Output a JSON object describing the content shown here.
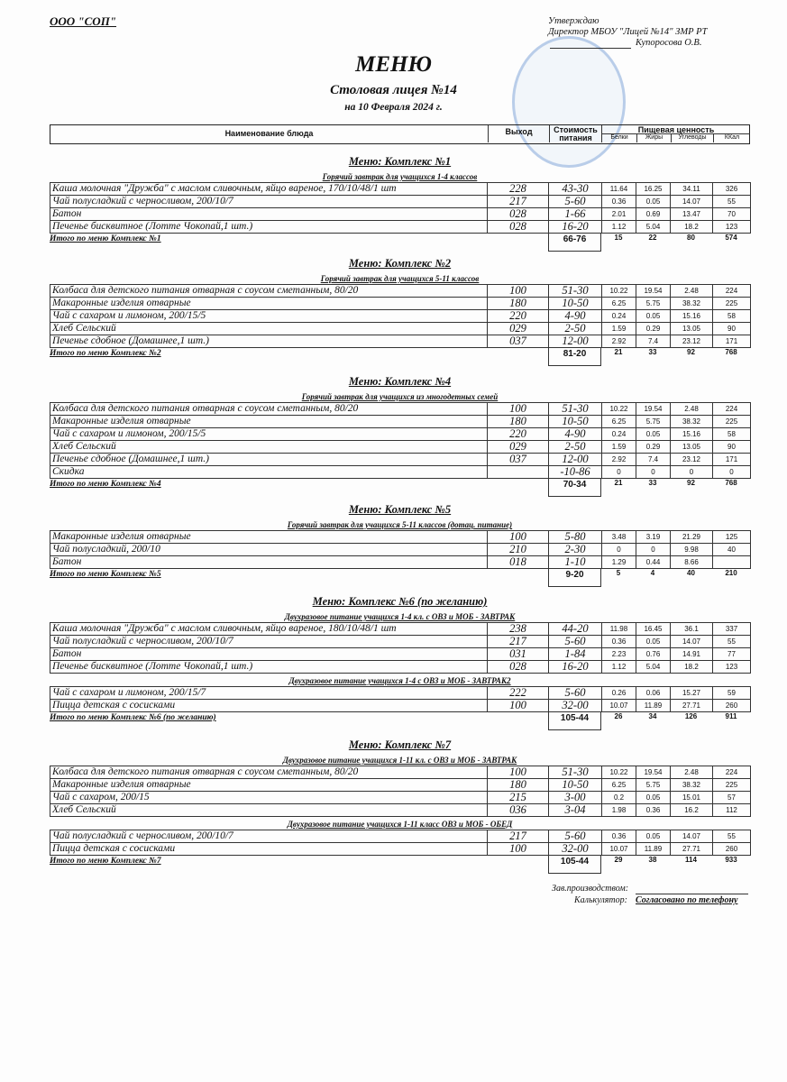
{
  "org": "ООО \"СОП\"",
  "approval": {
    "line1": "Утверждаю",
    "line2": "Директор МБОУ \"Лицей №14\" ЗМР РТ",
    "line3": "Купоросова О.В."
  },
  "title": "МЕНЮ",
  "subtitle": "Столовая лицея №14",
  "date": "на 10 Февраля 2024 г.",
  "header": {
    "name": "Наименование блюда",
    "output": "Выход",
    "cost": "Стоимость питания",
    "nutrition": "Пищевая ценность",
    "protein": "Белки",
    "fat": "Жиры",
    "carbs": "Углеводы",
    "kcal": "ККал"
  },
  "sections": [
    {
      "title": "Меню: Комплекс №1",
      "groups": [
        {
          "subtitle": "Горячий завтрак для учащихся 1-4 классов",
          "rows": [
            [
              "Каша молочная \"Дружба\" с маслом сливочным, яйцо вареное, 170/10/48/1 шт",
              "228",
              "43-30",
              "11.64",
              "16.25",
              "34.11",
              "326"
            ],
            [
              "Чай полусладкий с черносливом, 200/10/7",
              "217",
              "5-60",
              "0.36",
              "0.05",
              "14.07",
              "55"
            ],
            [
              "Батон",
              "028",
              "1-66",
              "2.01",
              "0.69",
              "13.47",
              "70"
            ],
            [
              "Печенье бисквитное (Лотте Чокопай,1 шт.)",
              "028",
              "16-20",
              "1.12",
              "5.04",
              "18.2",
              "123"
            ]
          ]
        }
      ],
      "total": {
        "label": "Итого по меню Комплекс №1",
        "cost": "66-76",
        "values": [
          "15",
          "22",
          "80",
          "574"
        ]
      }
    },
    {
      "title": "Меню: Комплекс №2",
      "groups": [
        {
          "subtitle": "Горячий завтрак для учащихся 5-11 классов",
          "rows": [
            [
              "Колбаса для детского питания отварная с соусом сметанным, 80/20",
              "100",
              "51-30",
              "10.22",
              "19.54",
              "2.48",
              "224"
            ],
            [
              "Макаронные изделия отварные",
              "180",
              "10-50",
              "6.25",
              "5.75",
              "38.32",
              "225"
            ],
            [
              "Чай с сахаром и лимоном, 200/15/5",
              "220",
              "4-90",
              "0.24",
              "0.05",
              "15.16",
              "58"
            ],
            [
              "Хлеб Сельский",
              "029",
              "2-50",
              "1.59",
              "0.29",
              "13.05",
              "90"
            ],
            [
              "Печенье сдобное (Домашнее,1 шт.)",
              "037",
              "12-00",
              "2.92",
              "7.4",
              "23.12",
              "171"
            ]
          ]
        }
      ],
      "total": {
        "label": "Итого по меню Комплекс №2",
        "cost": "81-20",
        "values": [
          "21",
          "33",
          "92",
          "768"
        ]
      }
    },
    {
      "title": "Меню: Комплекс №4",
      "groups": [
        {
          "subtitle": "Горячий завтрак для учащихся из многодетных семей",
          "rows": [
            [
              "Колбаса для детского питания отварная с соусом сметанным, 80/20",
              "100",
              "51-30",
              "10.22",
              "19.54",
              "2.48",
              "224"
            ],
            [
              "Макаронные изделия отварные",
              "180",
              "10-50",
              "6.25",
              "5.75",
              "38.32",
              "225"
            ],
            [
              "Чай с сахаром и лимоном, 200/15/5",
              "220",
              "4-90",
              "0.24",
              "0.05",
              "15.16",
              "58"
            ],
            [
              "Хлеб Сельский",
              "029",
              "2-50",
              "1.59",
              "0.29",
              "13.05",
              "90"
            ],
            [
              "Печенье сдобное (Домашнее,1 шт.)",
              "037",
              "12-00",
              "2.92",
              "7.4",
              "23.12",
              "171"
            ],
            [
              "Скидка",
              "",
              "-10-86",
              "0",
              "0",
              "0",
              "0"
            ]
          ]
        }
      ],
      "total": {
        "label": "Итого по меню Комплекс №4",
        "cost": "70-34",
        "values": [
          "21",
          "33",
          "92",
          "768"
        ]
      }
    },
    {
      "title": "Меню: Комплекс №5",
      "groups": [
        {
          "subtitle": "Горячий завтрак для учащихся 5-11 классов (дотац. питание)",
          "rows": [
            [
              "Макаронные изделия отварные",
              "100",
              "5-80",
              "3.48",
              "3.19",
              "21.29",
              "125"
            ],
            [
              "Чай полусладкий, 200/10",
              "210",
              "2-30",
              "0",
              "0",
              "9.98",
              "40"
            ],
            [
              "Батон",
              "018",
              "1-10",
              "1.29",
              "0.44",
              "8.66",
              ""
            ]
          ]
        }
      ],
      "total": {
        "label": "Итого по меню Комплекс №5",
        "cost": "9-20",
        "values": [
          "5",
          "4",
          "40",
          "210"
        ]
      }
    },
    {
      "title": "Меню: Комплекс №6 (по желанию)",
      "groups": [
        {
          "subtitle": "Двухразовое питание учащихся 1-4 кл. с ОВЗ и МОБ - ЗАВТРАК",
          "rows": [
            [
              "Каша молочная \"Дружба\" с маслом сливочным, яйцо вареное, 180/10/48/1 шт",
              "238",
              "44-20",
              "11.98",
              "16.45",
              "36.1",
              "337"
            ],
            [
              "Чай полусладкий с черносливом, 200/10/7",
              "217",
              "5-60",
              "0.36",
              "0.05",
              "14.07",
              "55"
            ],
            [
              "Батон",
              "031",
              "1-84",
              "2.23",
              "0.76",
              "14.91",
              "77"
            ],
            [
              "Печенье бисквитное (Лотте Чокопай,1 шт.)",
              "028",
              "16-20",
              "1.12",
              "5.04",
              "18.2",
              "123"
            ]
          ]
        },
        {
          "subtitle": "Двухразовое питание учащихся 1-4 с ОВЗ и МОБ - ЗАВТРАК2",
          "rows": [
            [
              "Чай с сахаром и лимоном, 200/15/7",
              "222",
              "5-60",
              "0.26",
              "0.06",
              "15.27",
              "59"
            ],
            [
              "Пицца детская с сосисками",
              "100",
              "32-00",
              "10.07",
              "11.89",
              "27.71",
              "260"
            ]
          ]
        }
      ],
      "total": {
        "label": "Итого по меню Комплекс №6 (по желанию)",
        "cost": "105-44",
        "values": [
          "26",
          "34",
          "126",
          "911"
        ]
      }
    },
    {
      "title": "Меню: Комплекс №7",
      "groups": [
        {
          "subtitle": "Двухразовое питание учащихся 1-11 кл. с  ОВЗ и МОБ - ЗАВТРАК",
          "rows": [
            [
              "Колбаса для детского питания отварная с соусом сметанным, 80/20",
              "100",
              "51-30",
              "10.22",
              "19.54",
              "2.48",
              "224"
            ],
            [
              "Макаронные изделия отварные",
              "180",
              "10-50",
              "6.25",
              "5.75",
              "38.32",
              "225"
            ],
            [
              "Чай с сахаром, 200/15",
              "215",
              "3-00",
              "0.2",
              "0.05",
              "15.01",
              "57"
            ],
            [
              "Хлеб Сельский",
              "036",
              "3-04",
              "1.98",
              "0.36",
              "16.2",
              "112"
            ]
          ]
        },
        {
          "subtitle": "Двухразовое питание учащихся 1-11 класс ОВЗ и МОБ - ОБЕД",
          "rows": [
            [
              "Чай полусладкий с черносливом, 200/10/7",
              "217",
              "5-60",
              "0.36",
              "0.05",
              "14.07",
              "55"
            ],
            [
              "Пицца детская с сосисками",
              "100",
              "32-00",
              "10.07",
              "11.89",
              "27.71",
              "260"
            ]
          ]
        }
      ],
      "total": {
        "label": "Итого по меню Комплекс №7",
        "cost": "105-44",
        "values": [
          "29",
          "38",
          "114",
          "933"
        ]
      }
    }
  ],
  "footer": {
    "manager": "Зав.производством:",
    "calc": "Калькулятор:",
    "calc_value": "Согласовано по телефону"
  }
}
